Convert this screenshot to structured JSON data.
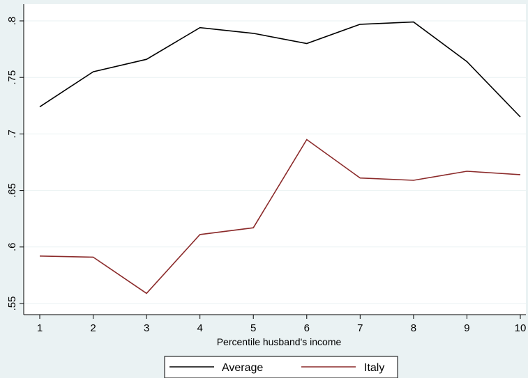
{
  "chart_data": {
    "type": "line",
    "xlabel": "Percentile husband's income",
    "ylabel": "",
    "x": [
      1,
      2,
      3,
      4,
      5,
      6,
      7,
      8,
      9,
      10
    ],
    "xticks": [
      "1",
      "2",
      "3",
      "4",
      "5",
      "6",
      "7",
      "8",
      "9",
      "10"
    ],
    "yticks": [
      {
        "value": 0.55,
        "label": ".55"
      },
      {
        "value": 0.6,
        "label": ".6"
      },
      {
        "value": 0.65,
        "label": ".65"
      },
      {
        "value": 0.7,
        "label": ".7"
      },
      {
        "value": 0.75,
        "label": ".75"
      },
      {
        "value": 0.8,
        "label": ".8"
      }
    ],
    "xlim": [
      1,
      10
    ],
    "ylim": [
      0.545,
      0.81
    ],
    "grid": "horizontal",
    "legend_position": "bottom",
    "series": [
      {
        "name": "Average",
        "color": "#000000",
        "values": [
          0.724,
          0.755,
          0.766,
          0.794,
          0.789,
          0.78,
          0.797,
          0.799,
          0.764,
          0.715
        ]
      },
      {
        "name": "Italy",
        "color": "#8b2a2a",
        "values": [
          0.592,
          0.591,
          0.559,
          0.611,
          0.617,
          0.695,
          0.661,
          0.659,
          0.667,
          0.664
        ]
      }
    ]
  }
}
